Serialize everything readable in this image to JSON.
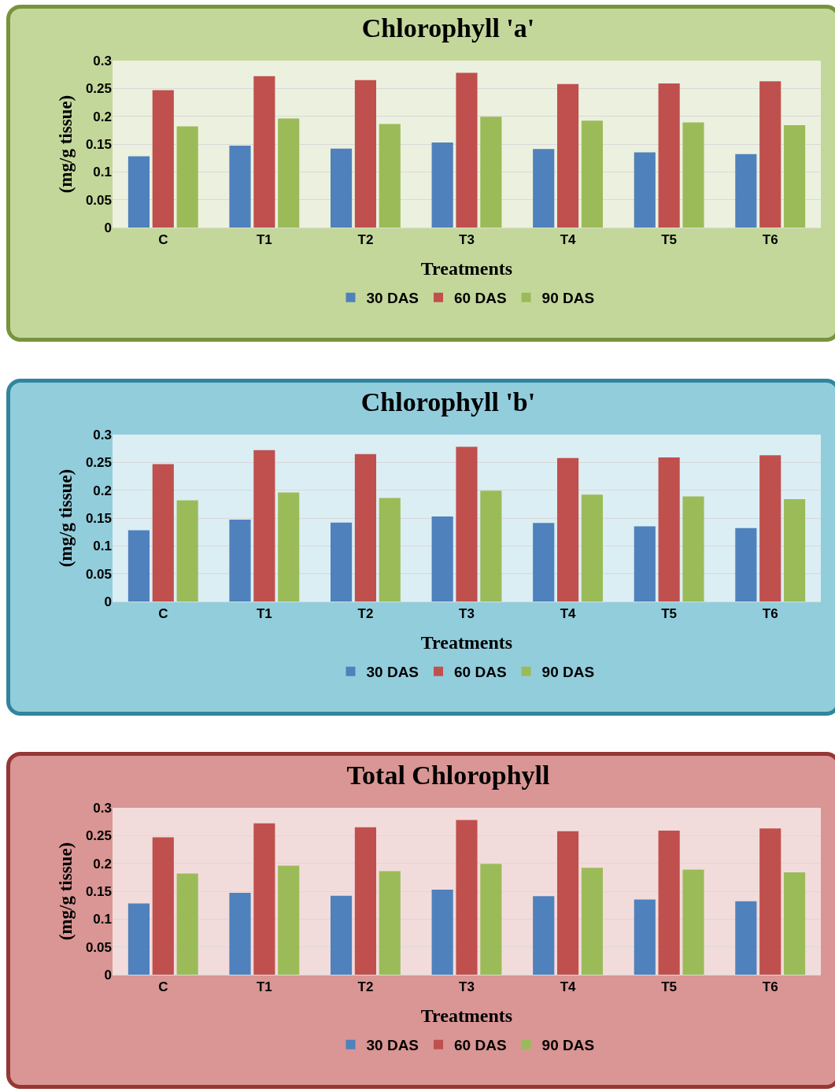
{
  "chart_data": [
    {
      "type": "bar",
      "title": "Chlorophyll 'a'",
      "xlabel": "Treatments",
      "ylabel": "(mg/g tissue)",
      "categories": [
        "C",
        "T1",
        "T2",
        "T3",
        "T4",
        "T5",
        "T6"
      ],
      "series": [
        {
          "name": "30 DAS",
          "color": "#4f81bd",
          "values": [
            0.128,
            0.147,
            0.142,
            0.153,
            0.141,
            0.135,
            0.132
          ]
        },
        {
          "name": "60 DAS",
          "color": "#c0504d",
          "values": [
            0.247,
            0.272,
            0.265,
            0.278,
            0.258,
            0.259,
            0.263
          ]
        },
        {
          "name": "90 DAS",
          "color": "#9bbb59",
          "values": [
            0.182,
            0.196,
            0.186,
            0.199,
            0.192,
            0.189,
            0.184
          ]
        }
      ],
      "ylim": [
        0,
        0.3
      ],
      "yticks": [
        0,
        0.05,
        0.1,
        0.15,
        0.2,
        0.25,
        0.3
      ],
      "grid": "y",
      "legend": "bottom"
    },
    {
      "type": "bar",
      "title": "Chlorophyll 'b'",
      "xlabel": "Treatments",
      "ylabel": "(mg/g tissue)",
      "categories": [
        "C",
        "T1",
        "T2",
        "T3",
        "T4",
        "T5",
        "T6"
      ],
      "series": [
        {
          "name": "30 DAS",
          "color": "#4f81bd",
          "values": [
            0.128,
            0.147,
            0.142,
            0.153,
            0.141,
            0.135,
            0.132
          ]
        },
        {
          "name": "60 DAS",
          "color": "#c0504d",
          "values": [
            0.247,
            0.272,
            0.265,
            0.278,
            0.258,
            0.259,
            0.263
          ]
        },
        {
          "name": "90 DAS",
          "color": "#9bbb59",
          "values": [
            0.182,
            0.196,
            0.186,
            0.199,
            0.192,
            0.189,
            0.184
          ]
        }
      ],
      "ylim": [
        0,
        0.3
      ],
      "yticks": [
        0,
        0.05,
        0.1,
        0.15,
        0.2,
        0.25,
        0.3
      ],
      "grid": "y",
      "legend": "bottom"
    },
    {
      "type": "bar",
      "title": "Total Chlorophyll",
      "xlabel": "Treatments",
      "ylabel": "(mg/g tissue)",
      "categories": [
        "C",
        "T1",
        "T2",
        "T3",
        "T4",
        "T5",
        "T6"
      ],
      "series": [
        {
          "name": "30 DAS",
          "color": "#4f81bd",
          "values": [
            0.128,
            0.147,
            0.142,
            0.153,
            0.141,
            0.135,
            0.132
          ]
        },
        {
          "name": "60 DAS",
          "color": "#c0504d",
          "values": [
            0.247,
            0.272,
            0.265,
            0.278,
            0.258,
            0.259,
            0.263
          ]
        },
        {
          "name": "90 DAS",
          "color": "#9bbb59",
          "values": [
            0.182,
            0.196,
            0.186,
            0.199,
            0.192,
            0.189,
            0.184
          ]
        }
      ],
      "ylim": [
        0,
        0.3
      ],
      "yticks": [
        0,
        0.05,
        0.1,
        0.15,
        0.2,
        0.25,
        0.3
      ],
      "grid": "y",
      "legend": "bottom"
    }
  ]
}
